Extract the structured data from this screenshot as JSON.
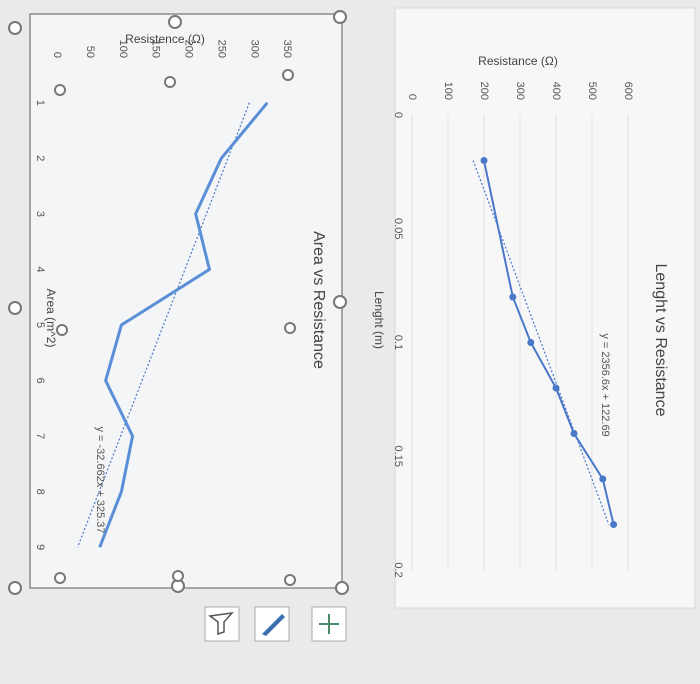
{
  "chart_data": [
    {
      "type": "line",
      "title": "Lenght vs Resistance",
      "x_label": "Lenght (m)",
      "y_label": "Resistance (Ω)",
      "x": [
        0.02,
        0.08,
        0.1,
        0.12,
        0.14,
        0.16,
        0.18
      ],
      "series": [
        {
          "color": "#4a78c8",
          "values": [
            200,
            280,
            330,
            400,
            450,
            530,
            560
          ]
        }
      ],
      "xlim": [
        0,
        0.2
      ],
      "xticks": [
        0,
        0.05,
        0.1,
        0.15,
        0.2
      ],
      "ylim": [
        0,
        600
      ],
      "yticks": [
        0,
        100,
        200,
        300,
        400,
        500,
        600
      ],
      "grid": true,
      "markers": true,
      "trendline": {
        "label": "y = 2356.6x + 122.69",
        "slope": 2356.6,
        "intercept": 122.69
      }
    },
    {
      "type": "line",
      "title": "Area vs Resistance",
      "x_label": "Area (m^2)",
      "y_label": "Resistence (Ω)",
      "categories": [
        "1",
        "2",
        "3",
        "4",
        "5",
        "6",
        "7",
        "8",
        "9"
      ],
      "series": [
        {
          "color": "#5a8fd8",
          "values": [
            320,
            250,
            211,
            232,
            98,
            74,
            115,
            98,
            65
          ]
        }
      ],
      "ylim": [
        0,
        350
      ],
      "yticks": [
        0,
        50,
        100,
        150,
        200,
        250,
        300,
        350
      ],
      "grid": false,
      "markers": false,
      "trendline": {
        "label": "y = -32.662x + 325.37",
        "slope": -32.662,
        "intercept": 325.37
      }
    }
  ]
}
